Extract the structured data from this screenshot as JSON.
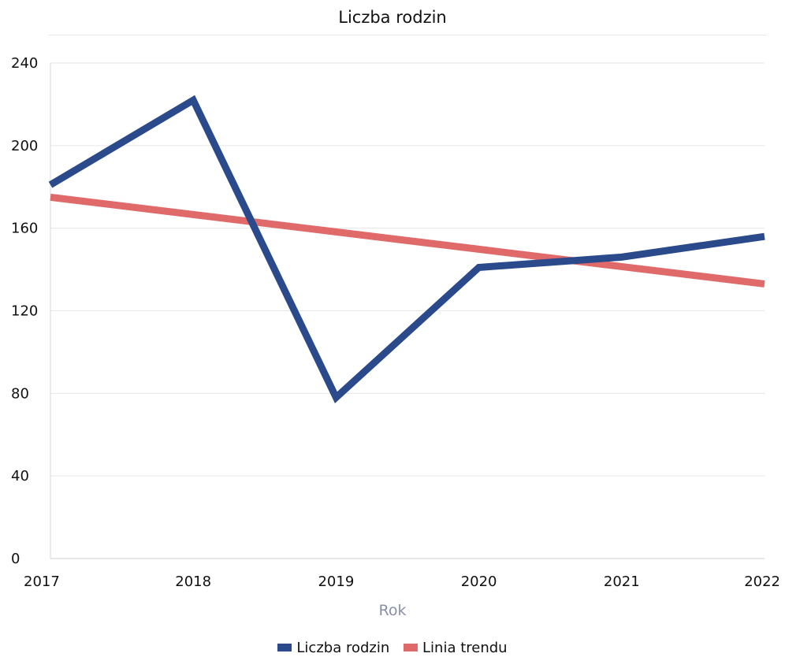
{
  "chart_data": {
    "type": "line",
    "title": "Liczba rodzin",
    "xlabel": "Rok",
    "ylabel": "",
    "categories": [
      "2017",
      "2018",
      "2019",
      "2020",
      "2021",
      "2022"
    ],
    "yticks": [
      "0",
      "40",
      "80",
      "120",
      "160",
      "200",
      "240"
    ],
    "ylim": [
      0,
      240
    ],
    "grid": true,
    "legend_position": "bottom",
    "series": [
      {
        "name": "Liczba rodzin",
        "color": "#2b4a8b",
        "values": [
          181,
          222,
          78,
          141,
          146,
          156
        ]
      },
      {
        "name": "Linia trendu",
        "color": "#e06a6a",
        "values": [
          175,
          166.6,
          158.2,
          149.8,
          141.4,
          133
        ]
      }
    ]
  }
}
